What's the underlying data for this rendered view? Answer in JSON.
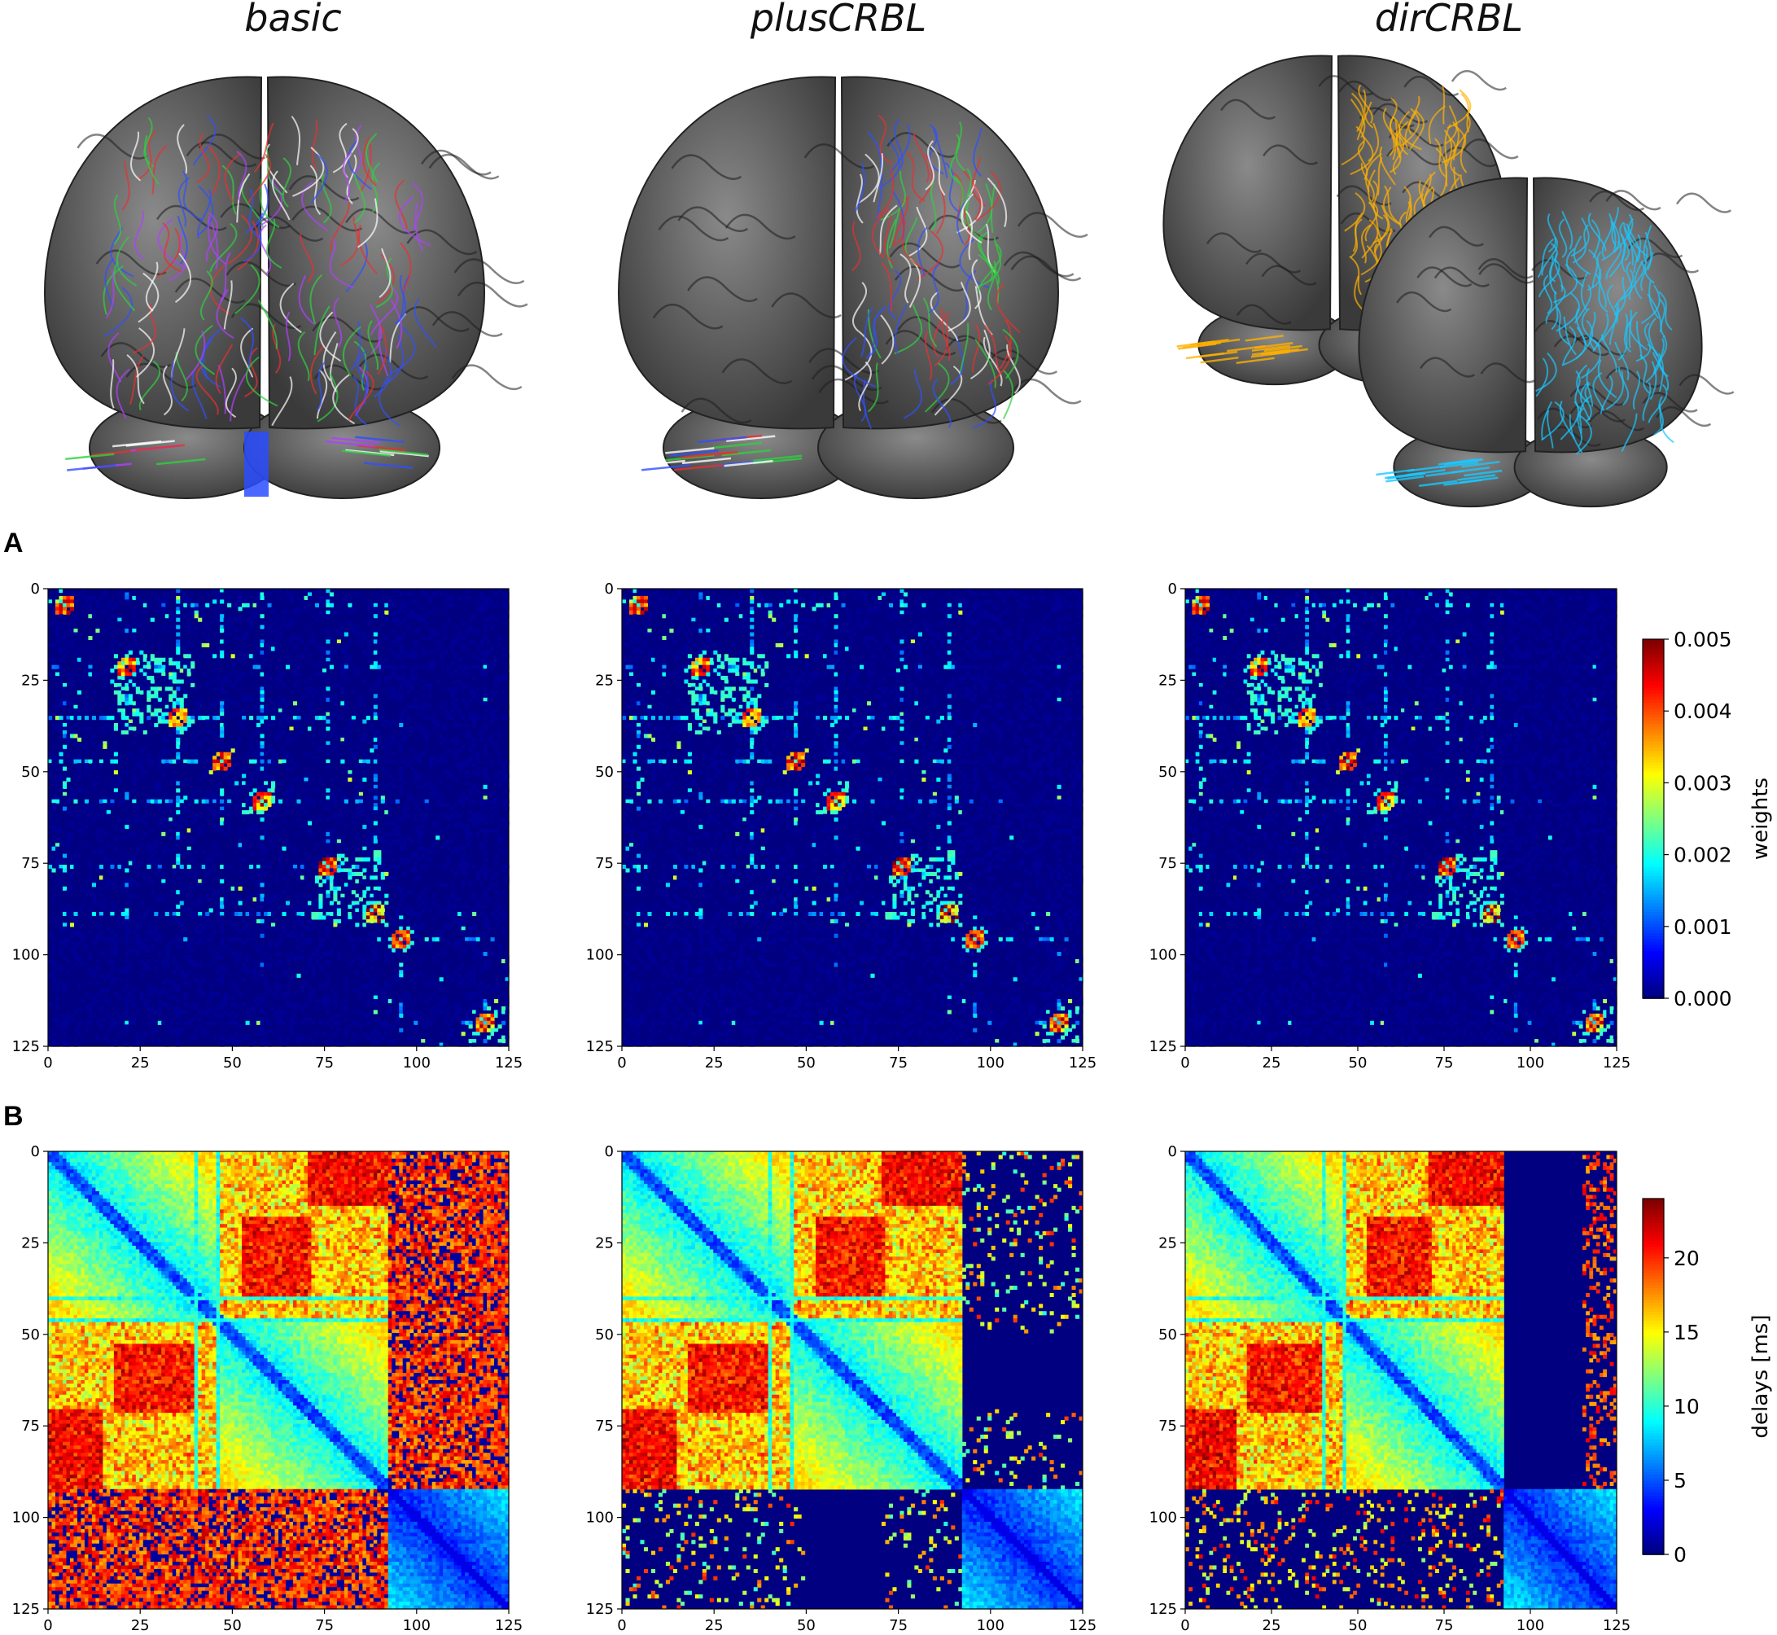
{
  "models": [
    "basic",
    "plusCRBL",
    "dirCRBL"
  ],
  "panel_labels": {
    "a": "A",
    "b": "B"
  },
  "brain_images": [
    {
      "model": "basic",
      "tract_colors": [
        "#3050ff",
        "#e83030",
        "#30d040",
        "#ffffff",
        "#b040ff"
      ],
      "description_icon": "brain-tractography-icon"
    },
    {
      "model": "plusCRBL",
      "tract_colors": [
        "#3050ff",
        "#e83030",
        "#30d040",
        "#ffffff"
      ],
      "description_icon": "brain-tractography-icon"
    },
    {
      "model": "dirCRBL",
      "tract_colors": [
        "#ffb000",
        "#19c8ff"
      ],
      "description_icon": "brain-tractography-icon"
    }
  ],
  "chart_data": [
    {
      "type": "heatmap",
      "panel": "A",
      "model": "basic",
      "n": 126,
      "x_ticks": [
        0,
        25,
        50,
        75,
        100,
        125
      ],
      "y_ticks": [
        0,
        25,
        50,
        75,
        100,
        125
      ],
      "xlim": [
        0,
        125
      ],
      "ylim": [
        125,
        0
      ],
      "colorbar": {
        "label": "weights",
        "range": [
          0,
          0.005
        ],
        "ticks": [
          "0.000",
          "0.001",
          "0.002",
          "0.003",
          "0.004",
          "0.005"
        ]
      },
      "blocks": [
        [
          0,
          6
        ],
        [
          18,
          40
        ],
        [
          45,
          49
        ],
        [
          53,
          62
        ],
        [
          72,
          93
        ],
        [
          93,
          100
        ],
        [
          115,
          125
        ]
      ],
      "hubs": [
        4,
        21,
        35,
        47,
        58,
        76,
        89,
        96,
        119
      ]
    },
    {
      "type": "heatmap",
      "panel": "A",
      "model": "plusCRBL",
      "n": 126,
      "x_ticks": [
        0,
        25,
        50,
        75,
        100,
        125
      ],
      "y_ticks": [
        0,
        25,
        50,
        75,
        100,
        125
      ],
      "xlim": [
        0,
        125
      ],
      "ylim": [
        125,
        0
      ],
      "colorbar": {
        "label": "weights",
        "range": [
          0,
          0.005
        ],
        "ticks": [
          "0.000",
          "0.001",
          "0.002",
          "0.003",
          "0.004",
          "0.005"
        ]
      },
      "blocks": [
        [
          0,
          6
        ],
        [
          18,
          40
        ],
        [
          45,
          49
        ],
        [
          53,
          62
        ],
        [
          72,
          93
        ],
        [
          93,
          100
        ],
        [
          115,
          125
        ]
      ],
      "hubs": [
        4,
        21,
        35,
        47,
        58,
        76,
        89,
        96,
        119
      ]
    },
    {
      "type": "heatmap",
      "panel": "A",
      "model": "dirCRBL",
      "n": 126,
      "x_ticks": [
        0,
        25,
        50,
        75,
        100,
        125
      ],
      "y_ticks": [
        0,
        25,
        50,
        75,
        100,
        125
      ],
      "xlim": [
        0,
        125
      ],
      "ylim": [
        125,
        0
      ],
      "colorbar": {
        "label": "weights",
        "range": [
          0,
          0.005
        ],
        "ticks": [
          "0.000",
          "0.001",
          "0.002",
          "0.003",
          "0.004",
          "0.005"
        ]
      },
      "blocks": [
        [
          0,
          6
        ],
        [
          18,
          40
        ],
        [
          45,
          49
        ],
        [
          53,
          62
        ],
        [
          72,
          93
        ],
        [
          93,
          100
        ],
        [
          115,
          125
        ]
      ],
      "hubs": [
        4,
        21,
        35,
        47,
        58,
        76,
        89,
        96,
        119
      ]
    },
    {
      "type": "heatmap",
      "panel": "B",
      "model": "basic",
      "n": 126,
      "x_ticks": [
        0,
        25,
        50,
        75,
        100,
        125
      ],
      "y_ticks": [
        0,
        25,
        50,
        75,
        100,
        125
      ],
      "xlim": [
        0,
        125
      ],
      "ylim": [
        125,
        0
      ],
      "colorbar": {
        "label": "delays [ms]",
        "range": [
          0,
          24
        ],
        "ticks": [
          "0",
          "5",
          "10",
          "15",
          "20"
        ]
      },
      "cerebrum_range": [
        0,
        93
      ],
      "cerebellum_range": [
        93,
        126
      ],
      "cerebellum_connected": "all"
    },
    {
      "type": "heatmap",
      "panel": "B",
      "model": "plusCRBL",
      "n": 126,
      "x_ticks": [
        0,
        25,
        50,
        75,
        100,
        125
      ],
      "y_ticks": [
        0,
        25,
        50,
        75,
        100,
        125
      ],
      "xlim": [
        0,
        125
      ],
      "ylim": [
        125,
        0
      ],
      "colorbar": {
        "label": "delays [ms]",
        "range": [
          0,
          24
        ],
        "ticks": [
          "0",
          "5",
          "10",
          "15",
          "20"
        ]
      },
      "cerebrum_range": [
        0,
        93
      ],
      "cerebellum_range": [
        93,
        126
      ],
      "cerebellum_connected": "sparse"
    },
    {
      "type": "heatmap",
      "panel": "B",
      "model": "dirCRBL",
      "n": 126,
      "x_ticks": [
        0,
        25,
        50,
        75,
        100,
        125
      ],
      "y_ticks": [
        0,
        25,
        50,
        75,
        100,
        125
      ],
      "xlim": [
        0,
        125
      ],
      "ylim": [
        125,
        0
      ],
      "colorbar": {
        "label": "delays [ms]",
        "range": [
          0,
          24
        ],
        "ticks": [
          "0",
          "5",
          "10",
          "15",
          "20"
        ]
      },
      "cerebrum_range": [
        0,
        93
      ],
      "cerebellum_range": [
        93,
        126
      ],
      "cerebellum_connected": "directional"
    }
  ]
}
